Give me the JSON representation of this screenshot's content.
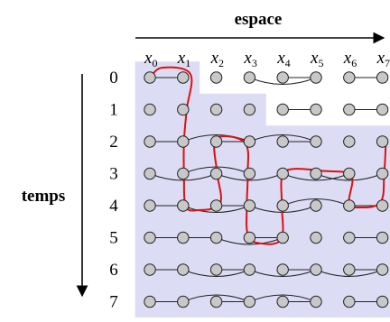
{
  "header": {
    "space_title": "espace",
    "time_title": "temps"
  },
  "columns": [
    {
      "letter": "x",
      "index": "0"
    },
    {
      "letter": "x",
      "index": "1"
    },
    {
      "letter": "x",
      "index": "2"
    },
    {
      "letter": "x",
      "index": "3"
    },
    {
      "letter": "x",
      "index": "4"
    },
    {
      "letter": "x",
      "index": "5"
    },
    {
      "letter": "x",
      "index": "6"
    },
    {
      "letter": "x",
      "index": "7"
    }
  ],
  "rows": [
    "0",
    "1",
    "2",
    "3",
    "4",
    "5",
    "6",
    "7"
  ],
  "colors": {
    "shade": "#dcdcf5",
    "node_fill": "#c8c8c8",
    "node_stroke": "#222222",
    "edge": "#222222",
    "path": "#e01010"
  },
  "shaded_region": {
    "cells_per_row": [
      [
        0,
        1
      ],
      [
        0,
        1,
        2,
        3
      ],
      [
        0,
        1,
        2,
        3,
        4,
        5,
        6,
        7
      ],
      [
        0,
        1,
        2,
        3,
        4,
        5,
        6,
        7
      ],
      [
        0,
        1,
        2,
        3,
        4,
        5,
        6,
        7
      ],
      [
        0,
        1,
        2,
        3,
        4,
        5,
        6,
        7
      ],
      [
        0,
        1,
        2,
        3,
        4,
        5,
        6,
        7
      ],
      [
        0,
        1,
        2,
        3,
        4,
        5,
        6,
        7
      ]
    ]
  },
  "edges": [
    {
      "row": 0,
      "from": 0,
      "to": 1,
      "kind": "straight"
    },
    {
      "row": 0,
      "from": 4,
      "to": 5,
      "kind": "straight"
    },
    {
      "row": 0,
      "from": 6,
      "to": 7,
      "kind": "straight"
    },
    {
      "row": 0,
      "from": 3,
      "to": 5,
      "kind": "arc-down"
    },
    {
      "row": 1,
      "from": 4,
      "to": 5,
      "kind": "straight"
    },
    {
      "row": 1,
      "from": 6,
      "to": 7,
      "kind": "straight"
    },
    {
      "row": 2,
      "from": 0,
      "to": 1,
      "kind": "straight"
    },
    {
      "row": 2,
      "from": 2,
      "to": 3,
      "kind": "straight"
    },
    {
      "row": 2,
      "from": 4,
      "to": 5,
      "kind": "straight"
    },
    {
      "row": 2,
      "from": 1,
      "to": 3,
      "kind": "arc-up"
    },
    {
      "row": 2,
      "from": 3,
      "to": 5,
      "kind": "arc-up"
    },
    {
      "row": 3,
      "from": 0,
      "to": 2,
      "kind": "arc-down"
    },
    {
      "row": 3,
      "from": 2,
      "to": 4,
      "kind": "arc-down"
    },
    {
      "row": 3,
      "from": 4,
      "to": 6,
      "kind": "arc-down"
    },
    {
      "row": 3,
      "from": 1,
      "to": 3,
      "kind": "arc-up"
    },
    {
      "row": 3,
      "from": 5,
      "to": 7,
      "kind": "arc-down"
    },
    {
      "row": 4,
      "from": 0,
      "to": 1,
      "kind": "straight"
    },
    {
      "row": 4,
      "from": 2,
      "to": 3,
      "kind": "straight"
    },
    {
      "row": 4,
      "from": 6,
      "to": 7,
      "kind": "straight"
    },
    {
      "row": 4,
      "from": 1,
      "to": 3,
      "kind": "arc-down"
    },
    {
      "row": 4,
      "from": 3,
      "to": 5,
      "kind": "arc-down"
    },
    {
      "row": 4,
      "from": 4,
      "to": 6,
      "kind": "arc-up"
    },
    {
      "row": 5,
      "from": 0,
      "to": 1,
      "kind": "straight"
    },
    {
      "row": 5,
      "from": 1,
      "to": 2,
      "kind": "straight"
    },
    {
      "row": 5,
      "from": 3,
      "to": 4,
      "kind": "straight"
    },
    {
      "row": 5,
      "from": 6,
      "to": 7,
      "kind": "straight"
    },
    {
      "row": 5,
      "from": 2,
      "to": 4,
      "kind": "arc-down"
    },
    {
      "row": 6,
      "from": 0,
      "to": 1,
      "kind": "straight"
    },
    {
      "row": 6,
      "from": 2,
      "to": 3,
      "kind": "straight"
    },
    {
      "row": 6,
      "from": 4,
      "to": 5,
      "kind": "straight"
    },
    {
      "row": 6,
      "from": 6,
      "to": 7,
      "kind": "straight"
    },
    {
      "row": 6,
      "from": 1,
      "to": 3,
      "kind": "arc-down"
    },
    {
      "row": 6,
      "from": 3,
      "to": 5,
      "kind": "arc-down"
    },
    {
      "row": 6,
      "from": 5,
      "to": 7,
      "kind": "arc-down"
    },
    {
      "row": 7,
      "from": 0,
      "to": 1,
      "kind": "straight"
    },
    {
      "row": 7,
      "from": 2,
      "to": 3,
      "kind": "straight"
    },
    {
      "row": 7,
      "from": 4,
      "to": 5,
      "kind": "straight"
    },
    {
      "row": 7,
      "from": 6,
      "to": 7,
      "kind": "straight"
    },
    {
      "row": 7,
      "from": 1,
      "to": 3,
      "kind": "arc-up"
    },
    {
      "row": 7,
      "from": 3,
      "to": 5,
      "kind": "arc-up"
    }
  ]
}
